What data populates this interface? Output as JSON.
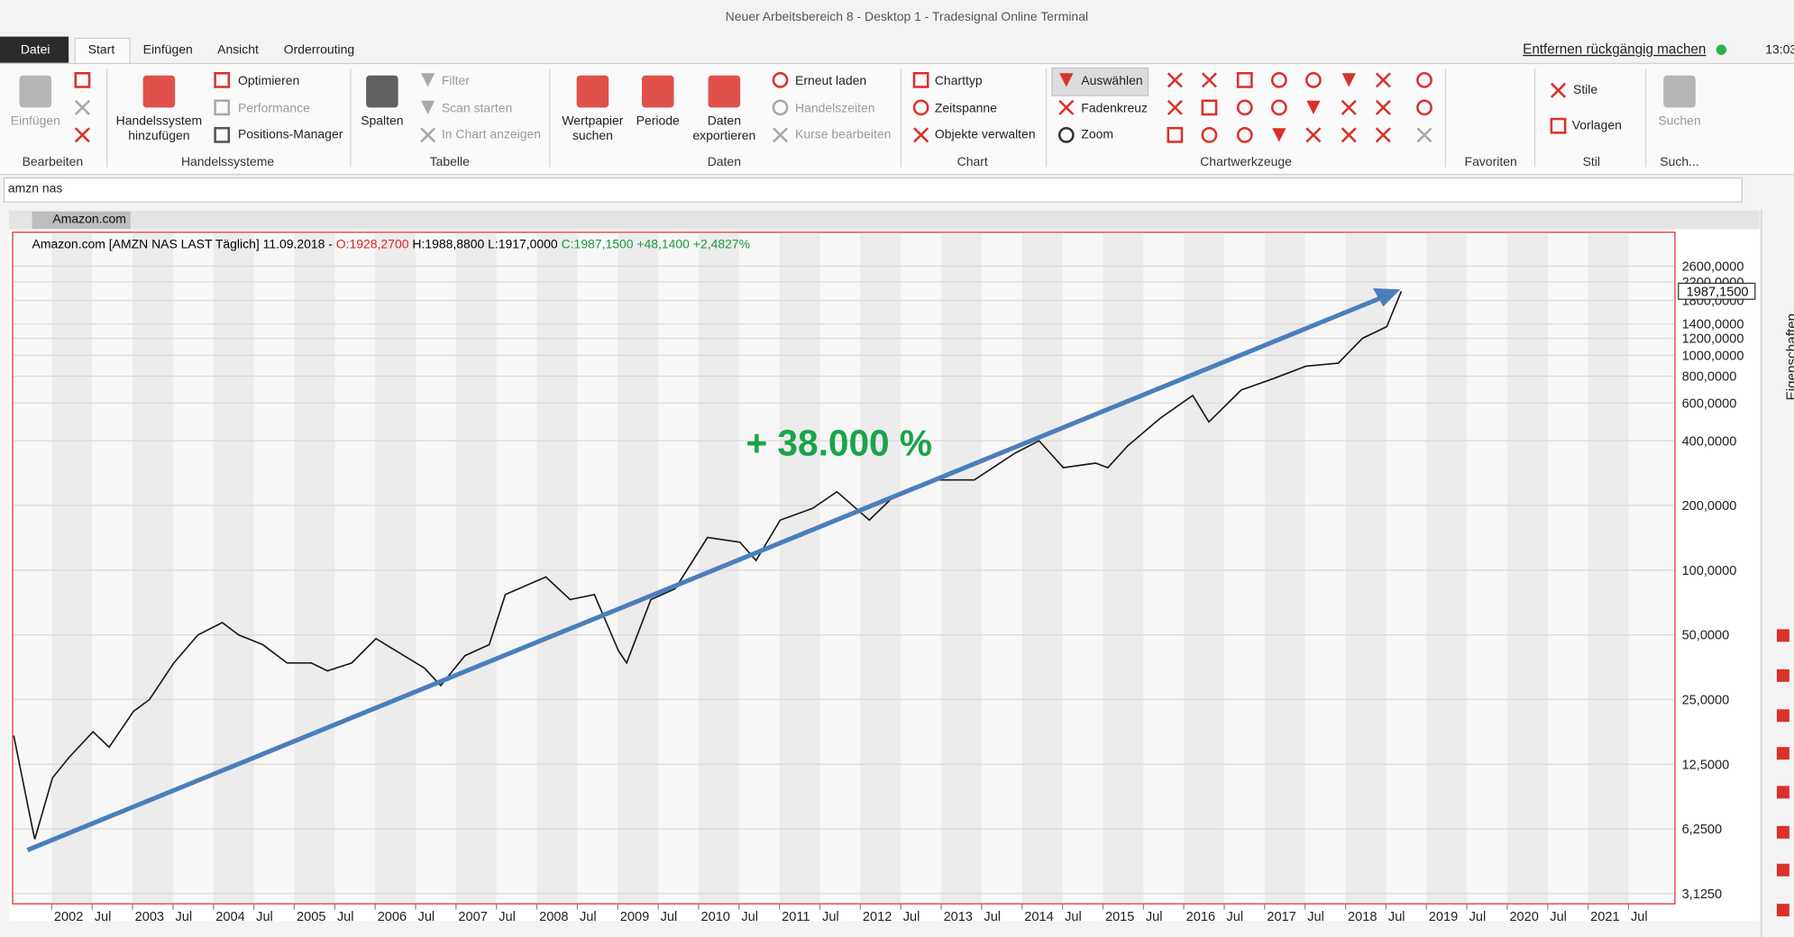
{
  "window": {
    "title": "Neuer Arbeitsbereich 8 - Desktop 1 - Tradesignal Online Terminal"
  },
  "menu": {
    "tabs": [
      "Datei",
      "Start",
      "Einfügen",
      "Ansicht",
      "Orderrouting"
    ],
    "undo": "Entfernen rückgängig machen",
    "time": "13:03"
  },
  "ribbon": {
    "groups": [
      {
        "label": "Bearbeiten",
        "items": [
          "Einfügen"
        ]
      },
      {
        "label": "Handelssysteme",
        "items": [
          "Handelssystem hinzufügen",
          "Optimieren",
          "Performance",
          "Positions-Manager"
        ]
      },
      {
        "label": "Tabelle",
        "items": [
          "Spalten",
          "Filter",
          "Scan starten",
          "In Chart anzeigen"
        ]
      },
      {
        "label": "Daten",
        "items": [
          "Wertpapier suchen",
          "Periode",
          "Daten exportieren",
          "Erneut laden",
          "Handelszeiten",
          "Kurse bearbeiten"
        ]
      },
      {
        "label": "Chart",
        "items": [
          "Charttyp",
          "Zeitspanne",
          "Objekte verwalten"
        ]
      },
      {
        "label": "Chartwerkzeuge",
        "items": [
          "Auswählen",
          "Fadenkreuz",
          "Zoom"
        ]
      },
      {
        "label": "Favoriten",
        "items": []
      },
      {
        "label": "Stil",
        "items": [
          "Stile",
          "Vorlagen"
        ]
      },
      {
        "label": "Such...",
        "items": [
          "Suchen"
        ]
      }
    ]
  },
  "search": "amzn nas",
  "chart_tab": "Amazon.com",
  "sidebar": "Eigenschaften",
  "chart_data": {
    "type": "line",
    "log_y": true,
    "color": "#1a1a1a",
    "header": {
      "name": "Amazon.com [AMZN NAS LAST Täglich] 11.09.2018 -",
      "open": "O:1928,2700",
      "high_low": "H:1988,8800 L:1917,0000",
      "close": "C:1987,1500 +48,1400 +2,4827%"
    },
    "annotation": "+ 38.000 %",
    "price_label": "1987,1500",
    "x": [
      2001.53,
      2001.76,
      2001.79,
      2002.01,
      2002.21,
      2002.51,
      2002.71,
      2003.01,
      2003.21,
      2003.51,
      2003.81,
      2004.11,
      2004.31,
      2004.61,
      2004.91,
      2005.21,
      2005.41,
      2005.71,
      2006.01,
      2006.31,
      2006.61,
      2006.81,
      2007.11,
      2007.41,
      2007.61,
      2008.11,
      2008.41,
      2008.71,
      2009.01,
      2009.11,
      2009.41,
      2009.71,
      2010.11,
      2010.51,
      2010.71,
      2011.01,
      2011.41,
      2011.71,
      2012.11,
      2012.41,
      2012.91,
      2013.41,
      2013.91,
      2014.21,
      2014.51,
      2014.91,
      2015.06,
      2015.31,
      2015.71,
      2016.11,
      2016.31,
      2016.71,
      2017.11,
      2017.51,
      2017.91,
      2018.21,
      2018.51,
      2018.69
    ],
    "values": [
      17,
      6.3,
      5.6,
      10.8,
      13.4,
      17.7,
      15,
      22,
      25,
      37,
      50,
      57,
      50,
      45,
      37,
      37,
      34,
      37,
      48,
      41,
      35,
      29,
      40,
      45,
      77,
      93,
      73,
      77,
      42,
      37,
      73,
      82,
      142,
      135,
      111,
      171,
      194,
      232,
      171,
      220,
      263,
      263,
      350,
      400,
      300,
      315,
      300,
      380,
      510,
      650,
      490,
      690,
      780,
      890,
      920,
      1200,
      1360,
      1987.15
    ],
    "xlim": [
      2001.53,
      2022.06
    ],
    "ylim": [
      2.8,
      3650
    ],
    "yticks": [
      {
        "value": 3.125,
        "label": "3,1250"
      },
      {
        "value": 6.25,
        "label": "6,2500"
      },
      {
        "value": 12.5,
        "label": "12,5000"
      },
      {
        "value": 25,
        "label": "25,0000"
      },
      {
        "value": 50,
        "label": "50,0000"
      },
      {
        "value": 100,
        "label": "100,0000"
      },
      {
        "value": 200,
        "label": "200,0000"
      },
      {
        "value": 400,
        "label": "400,0000"
      },
      {
        "value": 600,
        "label": "600,0000"
      },
      {
        "value": 800,
        "label": "800,0000"
      },
      {
        "value": 1000,
        "label": "1000,0000"
      },
      {
        "value": 1200,
        "label": "1200,0000"
      },
      {
        "value": 1400,
        "label": "1400,0000"
      },
      {
        "value": 1800,
        "label": "1800,0000"
      },
      {
        "value": 2200,
        "label": "2200,0000"
      },
      {
        "value": 2600,
        "label": "2600,0000"
      }
    ],
    "xticks": [
      2002,
      {
        "value": 2002.5,
        "label": "Jul"
      },
      2003,
      {
        "value": 2003.5,
        "label": "Jul"
      },
      2004,
      {
        "value": 2004.5,
        "label": "Jul"
      },
      2005,
      {
        "value": 2005.5,
        "label": "Jul"
      },
      2006,
      {
        "value": 2006.5,
        "label": "Jul"
      },
      2007,
      {
        "value": 2007.5,
        "label": "Jul"
      },
      2008,
      {
        "value": 2008.5,
        "label": "Jul"
      },
      2009,
      {
        "value": 2009.5,
        "label": "Jul"
      },
      2010,
      {
        "value": 2010.5,
        "label": "Jul"
      },
      2011,
      {
        "value": 2011.5,
        "label": "Jul"
      },
      2012,
      {
        "value": 2012.5,
        "label": "Jul"
      },
      2013,
      {
        "value": 2013.5,
        "label": "Jul"
      },
      2014,
      {
        "value": 2014.5,
        "label": "Jul"
      },
      2015,
      {
        "value": 2015.5,
        "label": "Jul"
      },
      2016,
      {
        "value": 2016.5,
        "label": "Jul"
      },
      2017,
      {
        "value": 2017.5,
        "label": "Jul"
      },
      2018,
      {
        "value": 2018.5,
        "label": "Jul"
      },
      2019,
      {
        "value": 2019.5,
        "label": "Jul"
      },
      2020,
      {
        "value": 2020.5,
        "label": "Jul"
      },
      2021,
      {
        "value": 2021.5,
        "label": "Jul"
      }
    ],
    "grid": true
  }
}
